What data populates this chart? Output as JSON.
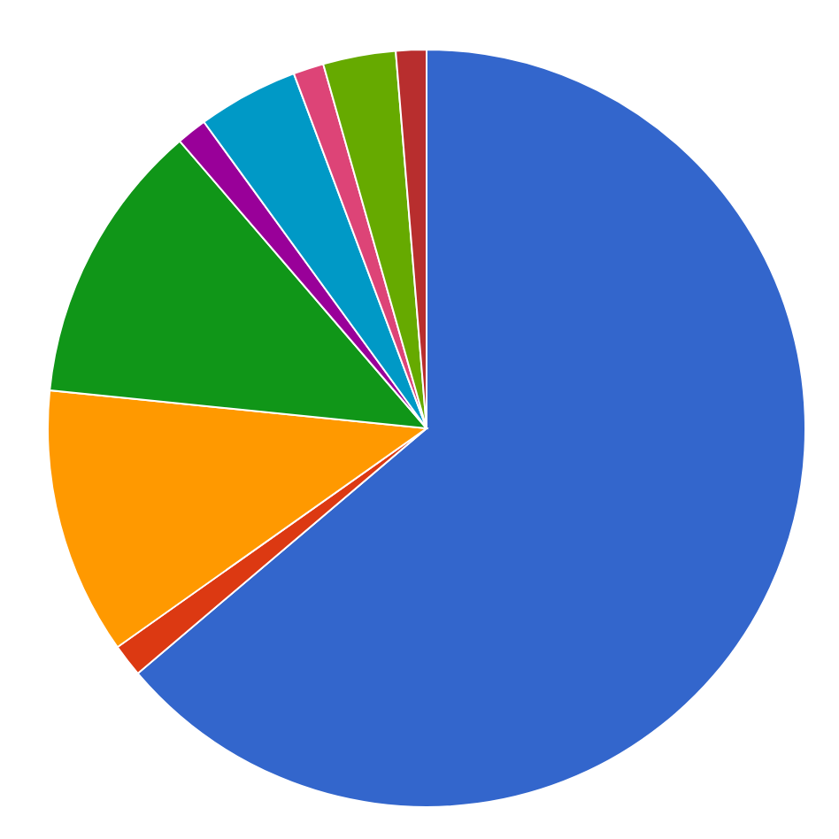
{
  "chart_data": {
    "type": "pie",
    "categories": [
      null,
      null,
      null,
      null,
      null,
      null,
      null,
      null,
      null
    ],
    "values": [
      63.8,
      1.4,
      11.4,
      12.1,
      1.3,
      4.3,
      1.3,
      3.1,
      1.3
    ],
    "colors": [
      "#3366cc",
      "#dc3912",
      "#ff9900",
      "#109618",
      "#990099",
      "#0099c6",
      "#dd4477",
      "#66aa00",
      "#b82e2e"
    ]
  }
}
